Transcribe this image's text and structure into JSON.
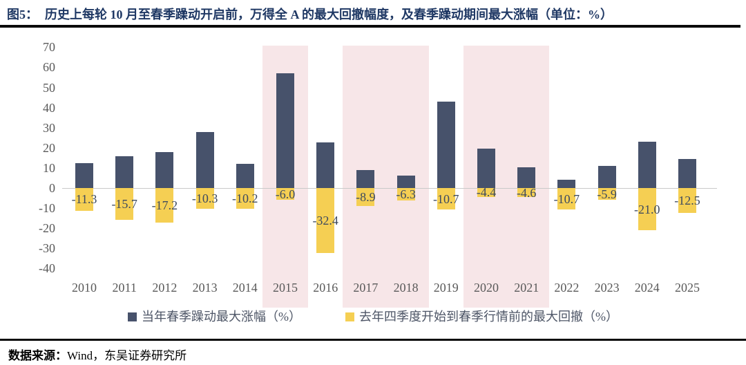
{
  "header": {
    "title_tag": "图5：",
    "title_text": "历史上每轮 10 月至春季躁动开启前，万得全 A 的最大回撤幅度，及春季躁动期间最大涨幅（单位：%）"
  },
  "footer": {
    "source_label": "数据来源：",
    "source_text": "Wind，东吴证券研究所"
  },
  "chart_data": {
    "type": "bar",
    "categories": [
      "2010",
      "2011",
      "2012",
      "2013",
      "2014",
      "2015",
      "2016",
      "2017",
      "2018",
      "2019",
      "2020",
      "2021",
      "2022",
      "2023",
      "2024",
      "2025"
    ],
    "series": [
      {
        "name": "当年春季躁动最大涨幅（%）",
        "color": "#47526B",
        "values": [
          12.3,
          15.8,
          18.0,
          28.0,
          12.0,
          56.9,
          22.8,
          8.9,
          6.3,
          42.8,
          19.5,
          10.3,
          4.0,
          11.0,
          23.0,
          14.5
        ],
        "labels_shown": false
      },
      {
        "name": "去年四季度开始到春季行情前的最大回撤（%）",
        "color": "#F5CF53",
        "values": [
          -11.3,
          -15.7,
          -17.2,
          -10.3,
          -10.2,
          -6.0,
          -32.4,
          -8.9,
          -6.3,
          -10.7,
          -4.4,
          -4.6,
          -10.7,
          -5.9,
          -21.0,
          -12.5
        ],
        "labels_shown": true
      }
    ],
    "ylim": [
      -40,
      70
    ],
    "ytick_step": 10,
    "grid": false,
    "legend_position": "bottom",
    "highlight_bands": [
      [
        "2015",
        "2015"
      ],
      [
        "2017",
        "2018"
      ],
      [
        "2020",
        "2021"
      ]
    ],
    "highlight_color": "#F7E6E8",
    "zero_line_color": "#C9C9C9",
    "label_color": "#3D4A5F",
    "tick_color": "#595959"
  }
}
